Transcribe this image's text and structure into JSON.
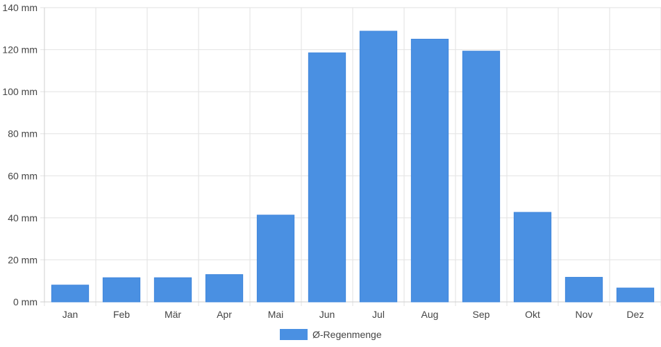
{
  "chart_data": {
    "type": "bar",
    "title": "",
    "xlabel": "",
    "ylabel": "",
    "categories": [
      "Jan",
      "Feb",
      "Mär",
      "Apr",
      "Mai",
      "Jun",
      "Jul",
      "Aug",
      "Sep",
      "Okt",
      "Nov",
      "Dez"
    ],
    "series": [
      {
        "name": "Ø-Regenmenge",
        "color": "#4a90e2",
        "values": [
          8,
          11.5,
          11.5,
          13,
          41.3,
          118.5,
          128.8,
          125,
          119.3,
          42.6,
          11.7,
          6.6
        ]
      }
    ],
    "ylim": [
      0,
      140
    ],
    "yticks": [
      "0 mm",
      "20 mm",
      "40 mm",
      "60 mm",
      "80 mm",
      "100 mm",
      "120 mm",
      "140 mm"
    ],
    "grid": true,
    "legend_position": "bottom-center"
  }
}
